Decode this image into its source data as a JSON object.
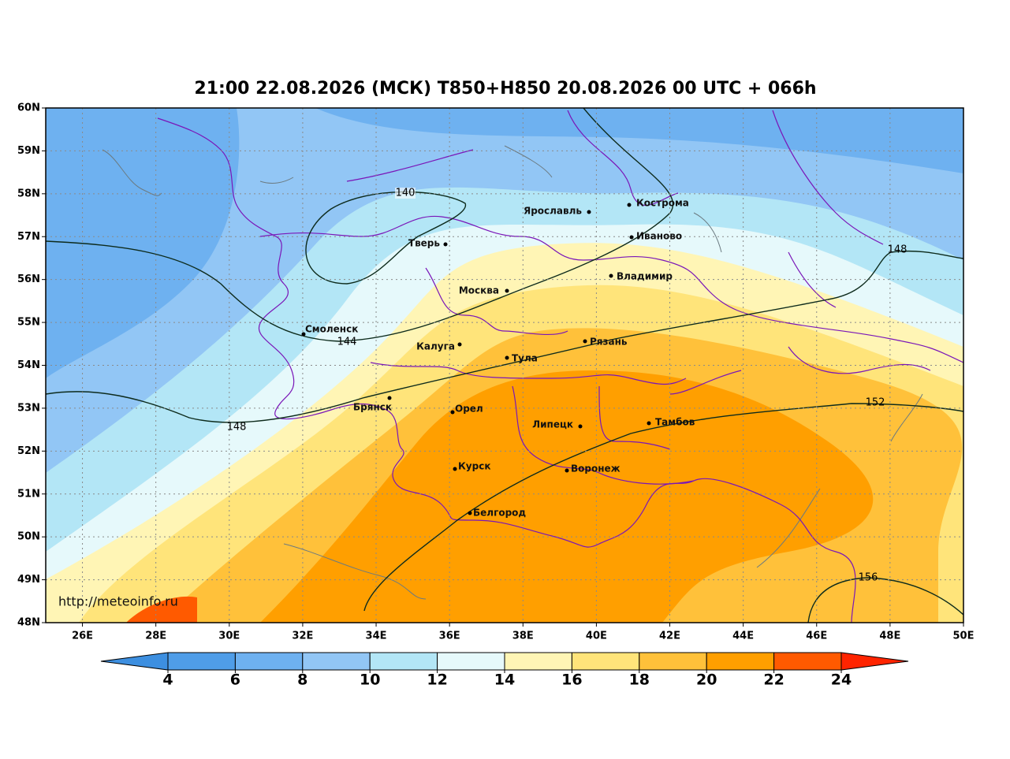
{
  "title": "21:00 22.08.2026 (МСК) T850+H850 20.08.2026 00 UTC + 066h",
  "map": {
    "xlim": [
      25,
      50
    ],
    "ylim": [
      48,
      60
    ],
    "xticks": [
      {
        "value": 26,
        "label": "26E"
      },
      {
        "value": 28,
        "label": "28E"
      },
      {
        "value": 30,
        "label": "30E"
      },
      {
        "value": 32,
        "label": "32E"
      },
      {
        "value": 34,
        "label": "34E"
      },
      {
        "value": 36,
        "label": "36E"
      },
      {
        "value": 38,
        "label": "38E"
      },
      {
        "value": 40,
        "label": "40E"
      },
      {
        "value": 42,
        "label": "42E"
      },
      {
        "value": 44,
        "label": "44E"
      },
      {
        "value": 46,
        "label": "46E"
      },
      {
        "value": 48,
        "label": "48E"
      },
      {
        "value": 50,
        "label": "50E"
      }
    ],
    "yticks": [
      {
        "value": 48,
        "label": "48N"
      },
      {
        "value": 49,
        "label": "49N"
      },
      {
        "value": 50,
        "label": "50N"
      },
      {
        "value": 51,
        "label": "51N"
      },
      {
        "value": 52,
        "label": "52N"
      },
      {
        "value": 53,
        "label": "53N"
      },
      {
        "value": 54,
        "label": "54N"
      },
      {
        "value": 55,
        "label": "55N"
      },
      {
        "value": 56,
        "label": "56N"
      },
      {
        "value": 57,
        "label": "57N"
      },
      {
        "value": 58,
        "label": "58N"
      },
      {
        "value": 59,
        "label": "59N"
      },
      {
        "value": 60,
        "label": "60N"
      }
    ],
    "grid": true,
    "cities": [
      "Кострома",
      "Ярославль",
      "Иваново",
      "Тверь",
      "Владимир",
      "Москва",
      "Смоленск",
      "Калуга",
      "Рязань",
      "Тула",
      "Брянск",
      "Орел",
      "Липецк",
      "Тамбов",
      "Курск",
      "Воронеж",
      "Белгород"
    ],
    "contour_labels": [
      140,
      144,
      148,
      148,
      152,
      156
    ],
    "watermark": "http://meteoinfo.ru"
  },
  "colorbar": {
    "ticks": [
      4,
      6,
      8,
      10,
      12,
      14,
      16,
      18,
      20,
      22,
      24
    ],
    "colors": [
      "#3d8fe0",
      "#4f9de8",
      "#6eb1f0",
      "#92c6f5",
      "#b3e6f6",
      "#e6f9fb",
      "#fff5b5",
      "#ffe47a",
      "#ffc13a",
      "#ff9f00",
      "#ff5a00",
      "#ff2400"
    ]
  }
}
